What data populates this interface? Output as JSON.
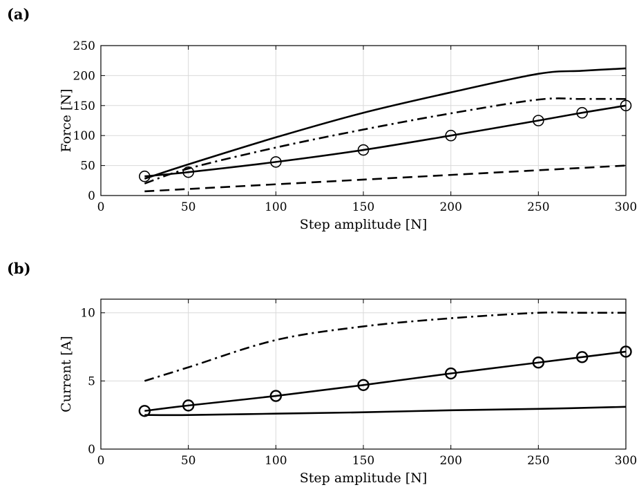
{
  "panels": [
    {
      "label": "(a)"
    },
    {
      "label": "(b)"
    }
  ],
  "chart_data": [
    {
      "type": "line",
      "xlabel": "Step amplitude [N]",
      "ylabel": "Force [N]",
      "xlim": [
        0,
        300
      ],
      "ylim": [
        0,
        250
      ],
      "xticks": [
        "0",
        "50",
        "100",
        "150",
        "200",
        "250",
        "300"
      ],
      "yticks": [
        "0",
        "50",
        "100",
        "150",
        "200",
        "250"
      ],
      "grid": true,
      "series": [
        {
          "style": "solid",
          "x": [
            25,
            50,
            100,
            150,
            200,
            250,
            275,
            300
          ],
          "y": [
            28,
            52,
            97,
            138,
            172,
            203,
            208,
            212
          ]
        },
        {
          "style": "dashdot",
          "x": [
            25,
            50,
            100,
            150,
            200,
            250,
            275,
            300
          ],
          "y": [
            20,
            45,
            80,
            110,
            137,
            160,
            161,
            161
          ]
        },
        {
          "style": "solid-circles",
          "x": [
            25,
            50,
            100,
            150,
            200,
            250,
            275,
            300
          ],
          "y": [
            32,
            39,
            56,
            76,
            100,
            125,
            138,
            150
          ]
        },
        {
          "style": "dashed",
          "x": [
            25,
            300
          ],
          "y": [
            7,
            50
          ]
        }
      ]
    },
    {
      "type": "line",
      "xlabel": "Step amplitude [N]",
      "ylabel": "Current [A]",
      "xlim": [
        0,
        300
      ],
      "ylim": [
        0,
        11
      ],
      "xticks": [
        "0",
        "50",
        "100",
        "150",
        "200",
        "250",
        "300"
      ],
      "yticks": [
        "0",
        "5",
        "10"
      ],
      "grid": true,
      "series": [
        {
          "style": "dashdot",
          "x": [
            25,
            50,
            100,
            150,
            200,
            250,
            275,
            300
          ],
          "y": [
            5.0,
            6.0,
            8.0,
            9.0,
            9.6,
            10.0,
            10.0,
            10.0
          ]
        },
        {
          "style": "solid-circles",
          "x": [
            25,
            50,
            100,
            150,
            200,
            250,
            275,
            300
          ],
          "y": [
            2.8,
            3.2,
            3.9,
            4.7,
            5.55,
            6.35,
            6.75,
            7.15
          ]
        },
        {
          "style": "solid",
          "x": [
            25,
            50,
            100,
            150,
            200,
            250,
            300
          ],
          "y": [
            2.5,
            2.5,
            2.6,
            2.7,
            2.85,
            2.95,
            3.1
          ]
        }
      ]
    }
  ]
}
